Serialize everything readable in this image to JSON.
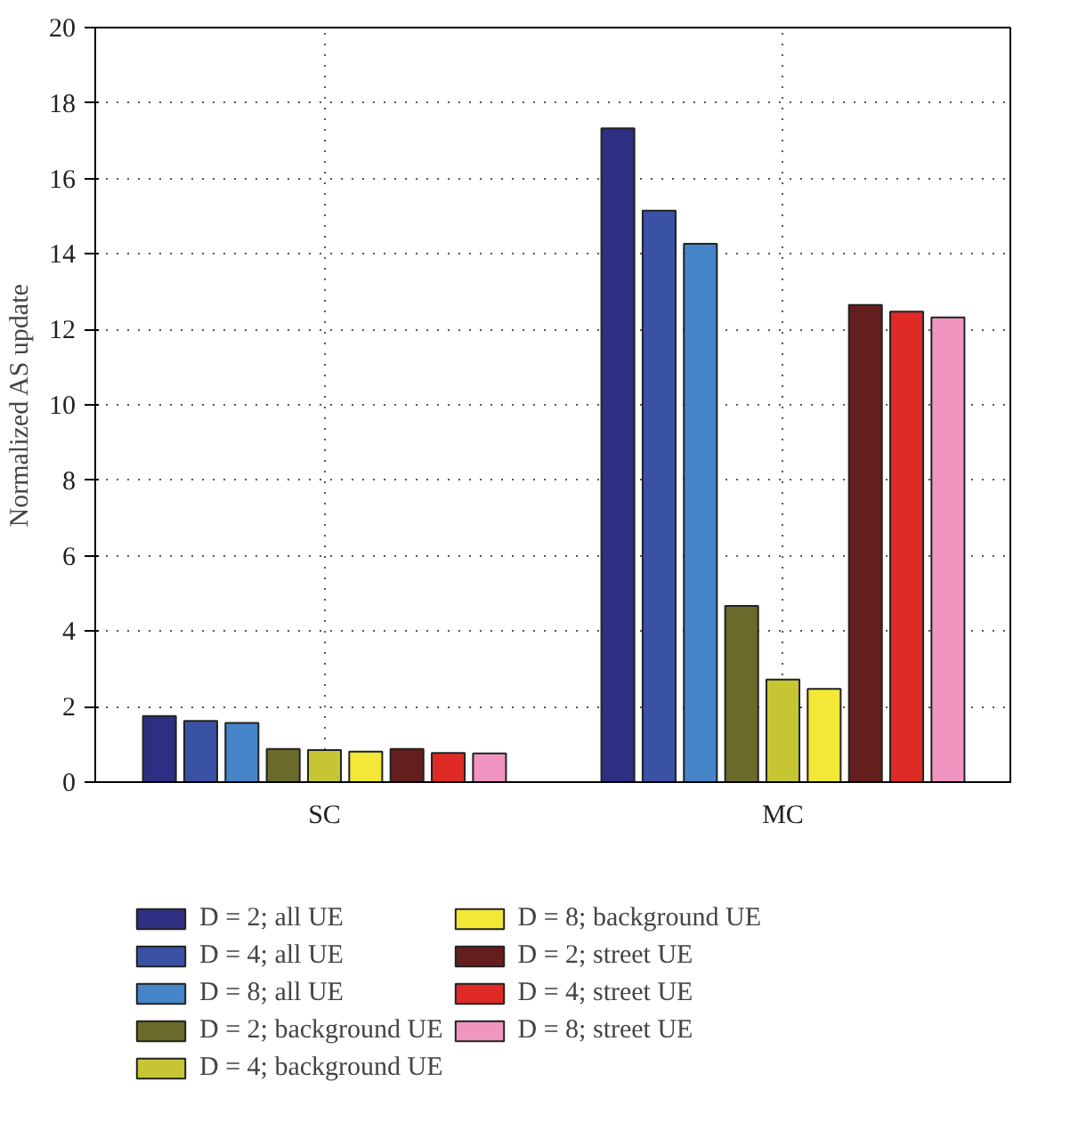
{
  "chart_data": {
    "type": "bar",
    "ylabel": "Normalized AS update",
    "categories": [
      "SC",
      "MC"
    ],
    "ylim": [
      0,
      20
    ],
    "yticks": [
      0,
      2,
      4,
      6,
      8,
      10,
      12,
      14,
      16,
      18,
      20
    ],
    "grid": true,
    "legend": "bottom",
    "series": [
      {
        "name": "D = 2; all UE",
        "color": "#2e2e82",
        "values": [
          1.75,
          17.33
        ]
      },
      {
        "name": "D = 4; all UE",
        "color": "#3a52a3",
        "values": [
          1.62,
          15.15
        ]
      },
      {
        "name": "D = 8; all UE",
        "color": "#4585c8",
        "values": [
          1.57,
          14.27
        ]
      },
      {
        "name": "D = 2; background UE",
        "color": "#6a6a2a",
        "values": [
          0.88,
          4.67
        ]
      },
      {
        "name": "D = 4; background UE",
        "color": "#c6c634",
        "values": [
          0.85,
          2.72
        ]
      },
      {
        "name": "D = 8; background UE",
        "color": "#f2e835",
        "values": [
          0.81,
          2.47
        ]
      },
      {
        "name": "D = 2; street UE",
        "color": "#631e1e",
        "values": [
          0.88,
          12.65
        ]
      },
      {
        "name": "D = 4; street UE",
        "color": "#e02a26",
        "values": [
          0.77,
          12.47
        ]
      },
      {
        "name": "D = 8; street UE",
        "color": "#f095c0",
        "values": [
          0.76,
          12.32
        ]
      }
    ]
  }
}
